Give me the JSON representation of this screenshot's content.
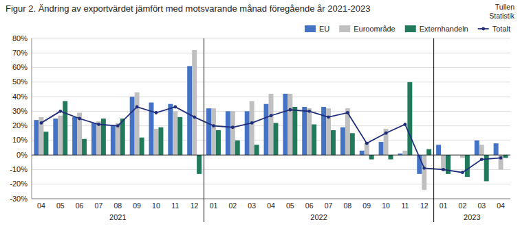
{
  "chart_data": {
    "type": "bar",
    "title": "Figur 2. Ändring av exportvärdet jämfört med motsvarande månad föregående år 2021-2023",
    "annotations": [
      "2021",
      "2022",
      "2023",
      "Tullen\nStatistik"
    ],
    "categories": [
      "04",
      "05",
      "06",
      "07",
      "08",
      "09",
      "10",
      "11",
      "12",
      "01",
      "02",
      "03",
      "04",
      "05",
      "06",
      "07",
      "08",
      "09",
      "10",
      "11",
      "12",
      "01",
      "02",
      "03",
      "04"
    ],
    "series": [
      {
        "name": "EU",
        "color": "#4472C4",
        "values": [
          24,
          25,
          26,
          22,
          20,
          40,
          36,
          35,
          61,
          32,
          30,
          30,
          35,
          42,
          33,
          33,
          19,
          3,
          9,
          1,
          -13,
          7,
          0,
          10,
          8
        ]
      },
      {
        "name": "Euroområde",
        "color": "#C0C0C0",
        "values": [
          26,
          27,
          29,
          23,
          22,
          43,
          18,
          30,
          72,
          32,
          30,
          37,
          42,
          42,
          32,
          32,
          32,
          8,
          18,
          3,
          -24,
          -11,
          -2,
          7,
          -10
        ]
      },
      {
        "name": "Externhandeln",
        "color": "#217A5C",
        "values": [
          16,
          37,
          11,
          25,
          25,
          12,
          19,
          26,
          -13,
          17,
          10,
          7,
          22,
          33,
          21,
          17,
          15,
          -3,
          -3,
          50,
          4,
          -13,
          -15,
          -18,
          -2
        ]
      },
      {
        "name": "Totalt",
        "type": "line",
        "marker": "circle",
        "color": "#1F2D7A",
        "values": [
          22,
          30,
          25,
          21,
          20,
          33,
          29,
          33,
          26,
          20,
          19,
          22,
          27,
          31,
          30,
          26,
          29,
          8,
          15,
          21,
          -9,
          -10,
          -12,
          -3,
          -2
        ]
      }
    ],
    "ylim": [
      -30,
      80
    ],
    "yticks": [
      {
        "value": -30,
        "label": "-30%"
      },
      {
        "value": -20,
        "label": "-20%"
      },
      {
        "value": -10,
        "label": "-10%"
      },
      {
        "value": 0,
        "label": "0%"
      },
      {
        "value": 10,
        "label": "10%"
      },
      {
        "value": 20,
        "label": "20%"
      },
      {
        "value": 30,
        "label": "30%"
      },
      {
        "value": 40,
        "label": "40%"
      },
      {
        "value": 50,
        "label": "50%"
      },
      {
        "value": 60,
        "label": "60%"
      },
      {
        "value": 70,
        "label": "70%"
      },
      {
        "value": 80,
        "label": "80%"
      }
    ],
    "grid": true,
    "legend": "upper right"
  }
}
